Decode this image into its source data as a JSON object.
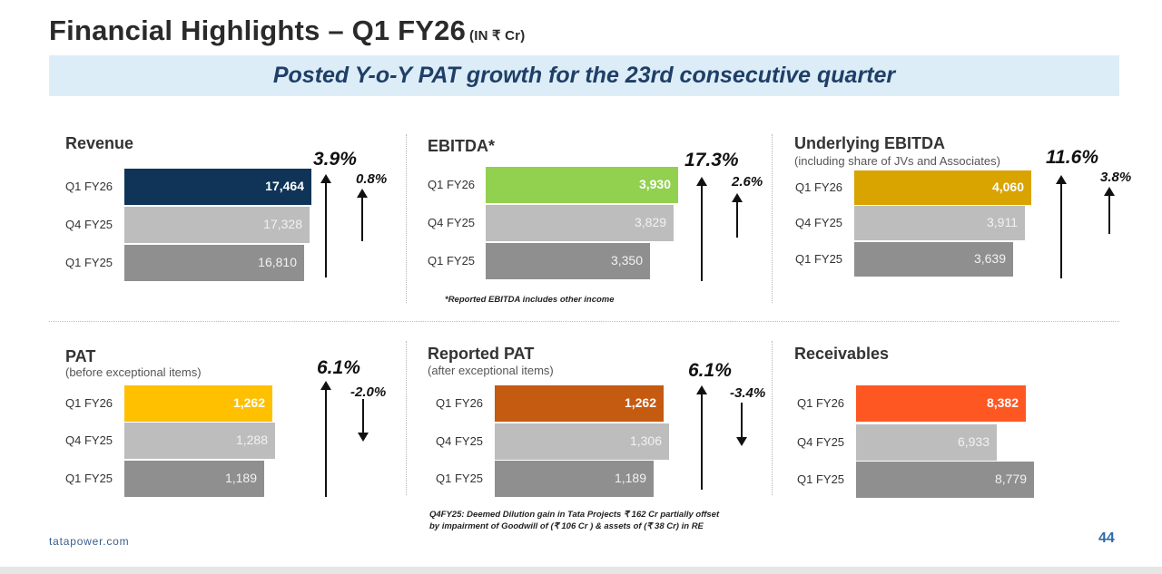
{
  "header": {
    "title": "Financial Highlights – Q1 FY26",
    "unit": "(IN ₹ Cr)",
    "banner": "Posted Y-o-Y PAT growth for the 23rd consecutive quarter"
  },
  "colors": {
    "banner_bg": "#dcedf8",
    "banner_text": "#1f3f66",
    "prior_bar_light": "#bdbdbd",
    "prior_bar_dark": "#8f8f8f"
  },
  "chart_data": [
    {
      "id": "revenue",
      "type": "bar",
      "orientation": "horizontal",
      "title": "Revenue",
      "subtitle": "",
      "categories": [
        "Q1 FY26",
        "Q4 FY25",
        "Q1 FY25"
      ],
      "values": [
        17464,
        17328,
        16810
      ],
      "value_labels": [
        "17,464",
        "17,328",
        "16,810"
      ],
      "highlight_color": "#0f3457",
      "yoy_growth": "3.9%",
      "yoy_direction": "up",
      "qoq_growth": "0.8%",
      "qoq_direction": "up",
      "note": ""
    },
    {
      "id": "ebitda",
      "type": "bar",
      "orientation": "horizontal",
      "title": "EBITDA*",
      "subtitle": "",
      "categories": [
        "Q1 FY26",
        "Q4 FY25",
        "Q1 FY25"
      ],
      "values": [
        3930,
        3829,
        3350
      ],
      "value_labels": [
        "3,930",
        "3,829",
        "3,350"
      ],
      "highlight_color": "#92d050",
      "yoy_growth": "17.3%",
      "yoy_direction": "up",
      "qoq_growth": "2.6%",
      "qoq_direction": "up",
      "note": "*Reported EBITDA includes other income"
    },
    {
      "id": "underlying-ebitda",
      "type": "bar",
      "orientation": "horizontal",
      "title": "Underlying EBITDA",
      "subtitle": "(including share of JVs and Associates)",
      "categories": [
        "Q1 FY26",
        "Q4 FY25",
        "Q1 FY25"
      ],
      "values": [
        4060,
        3911,
        3639
      ],
      "value_labels": [
        "4,060",
        "3,911",
        "3,639"
      ],
      "highlight_color": "#d9a300",
      "yoy_growth": "11.6%",
      "yoy_direction": "up",
      "qoq_growth": "3.8%",
      "qoq_direction": "up",
      "note": ""
    },
    {
      "id": "pat",
      "type": "bar",
      "orientation": "horizontal",
      "title": "PAT",
      "subtitle": "(before exceptional items)",
      "categories": [
        "Q1 FY26",
        "Q4 FY25",
        "Q1 FY25"
      ],
      "values": [
        1262,
        1288,
        1189
      ],
      "value_labels": [
        "1,262",
        "1,288",
        "1,189"
      ],
      "highlight_color": "#ffc000",
      "yoy_growth": "6.1%",
      "yoy_direction": "up",
      "qoq_growth": "-2.0%",
      "qoq_direction": "down",
      "note": ""
    },
    {
      "id": "reported-pat",
      "type": "bar",
      "orientation": "horizontal",
      "title": "Reported PAT",
      "subtitle": "(after exceptional items)",
      "categories": [
        "Q1 FY26",
        "Q4 FY25",
        "Q1 FY25"
      ],
      "values": [
        1262,
        1306,
        1189
      ],
      "value_labels": [
        "1,262",
        "1,306",
        "1,189"
      ],
      "highlight_color": "#c55a11",
      "yoy_growth": "6.1%",
      "yoy_direction": "up",
      "qoq_growth": "-3.4%",
      "qoq_direction": "down",
      "note": "Q4FY25: Deemed Dilution gain in Tata Projects ₹ 162 Cr partially offset\nby impairment of Goodwill of (₹ 106 Cr ) & assets of (₹ 38 Cr) in RE"
    },
    {
      "id": "receivables",
      "type": "bar",
      "orientation": "horizontal",
      "title": "Receivables",
      "subtitle": "",
      "categories": [
        "Q1 FY26",
        "Q4 FY25",
        "Q1 FY25"
      ],
      "values": [
        8382,
        6933,
        8779
      ],
      "value_labels": [
        "8,382",
        "6,933",
        "8,779"
      ],
      "highlight_color": "#ff5722",
      "yoy_growth": "",
      "yoy_direction": "",
      "qoq_growth": "",
      "qoq_direction": "",
      "note": ""
    }
  ],
  "footer": {
    "site": "tatapower.com",
    "page": "44"
  }
}
